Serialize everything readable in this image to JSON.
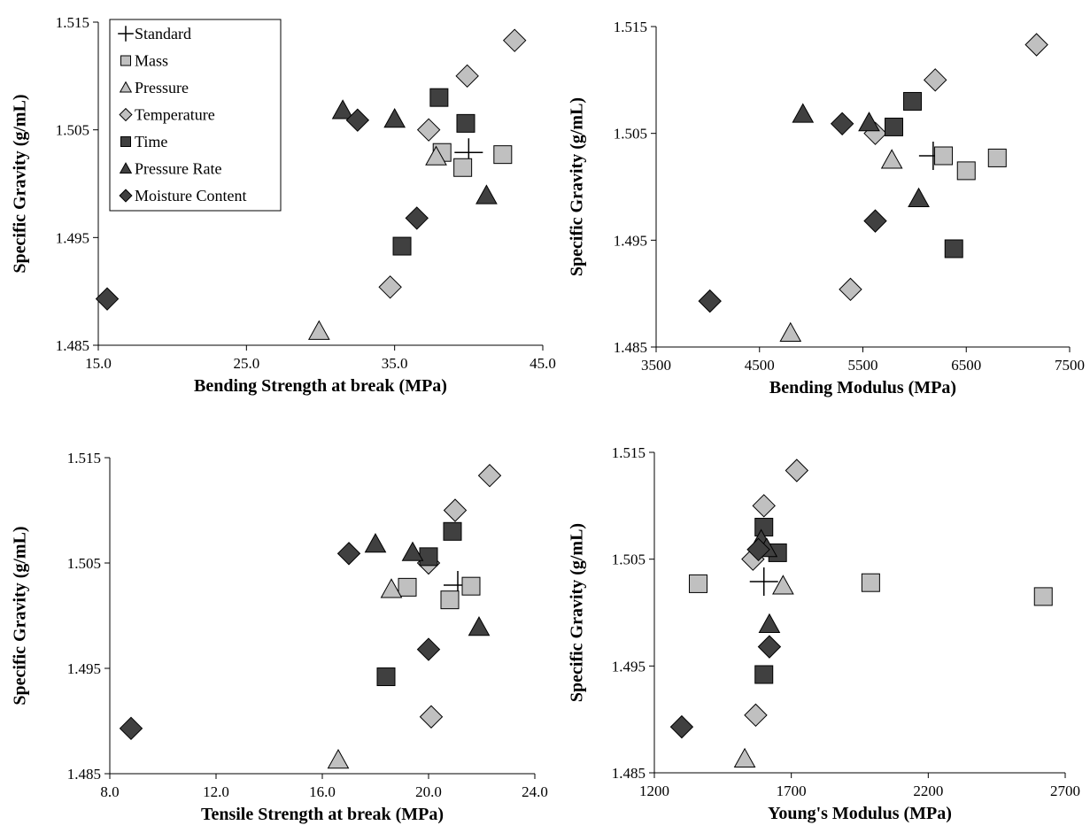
{
  "colors": {
    "light_fill": "#c0c0c0",
    "dark_fill": "#404040",
    "stroke": "#000000"
  },
  "legend": {
    "entries": [
      {
        "label": "Standard",
        "marker": "plus",
        "fill": "none"
      },
      {
        "label": "Mass",
        "marker": "square",
        "fill": "light"
      },
      {
        "label": "Pressure",
        "marker": "triangle",
        "fill": "light"
      },
      {
        "label": "Temperature",
        "marker": "diamond",
        "fill": "light"
      },
      {
        "label": "Time",
        "marker": "square",
        "fill": "dark"
      },
      {
        "label": "Pressure Rate",
        "marker": "triangle",
        "fill": "dark"
      },
      {
        "label": "Moisture Content",
        "marker": "diamond",
        "fill": "dark"
      }
    ],
    "placement": "top-left of first chart"
  },
  "chart_data": [
    {
      "type": "scatter",
      "xlabel": "Bending Strength at break (MPa)",
      "ylabel": "Specific Gravity (g/mL)",
      "xlim": [
        15,
        45
      ],
      "ylim": [
        1.485,
        1.515
      ],
      "xticks": [
        "15.0",
        "25.0",
        "35.0",
        "45.0"
      ],
      "yticks": [
        "1.485",
        "1.495",
        "1.505",
        "1.515"
      ],
      "grid": false,
      "legend": true,
      "series": [
        {
          "name": "Standard",
          "marker": "plus",
          "fill": "none",
          "points": [
            [
              40.0,
              1.5029
            ]
          ]
        },
        {
          "name": "Mass",
          "marker": "square",
          "fill": "light",
          "points": [
            [
              38.2,
              1.5029
            ],
            [
              39.6,
              1.5015
            ],
            [
              42.3,
              1.5027
            ]
          ]
        },
        {
          "name": "Pressure",
          "marker": "triangle",
          "fill": "light",
          "points": [
            [
              37.8,
              1.5025
            ],
            [
              29.9,
              1.4863
            ]
          ]
        },
        {
          "name": "Temperature",
          "marker": "diamond",
          "fill": "light",
          "points": [
            [
              43.1,
              1.5133
            ],
            [
              39.9,
              1.51
            ],
            [
              37.3,
              1.505
            ],
            [
              34.7,
              1.4904
            ]
          ]
        },
        {
          "name": "Time",
          "marker": "square",
          "fill": "dark",
          "points": [
            [
              38.0,
              1.508
            ],
            [
              39.8,
              1.5056
            ],
            [
              35.5,
              1.4942
            ]
          ]
        },
        {
          "name": "Pressure Rate",
          "marker": "triangle",
          "fill": "dark",
          "points": [
            [
              31.5,
              1.5068
            ],
            [
              35.0,
              1.506
            ],
            [
              41.2,
              1.4989
            ]
          ]
        },
        {
          "name": "Moisture Content",
          "marker": "diamond",
          "fill": "dark",
          "points": [
            [
              32.5,
              1.5059
            ],
            [
              36.5,
              1.4968
            ],
            [
              15.6,
              1.4893
            ]
          ]
        }
      ]
    },
    {
      "type": "scatter",
      "xlabel": "Bending Modulus (MPa)",
      "ylabel": "Specific Gravity (g/mL)",
      "xlim": [
        3500,
        7500
      ],
      "ylim": [
        1.485,
        1.515
      ],
      "xticks": [
        "3500",
        "4500",
        "5500",
        "6500",
        "7500"
      ],
      "yticks": [
        "1.485",
        "1.495",
        "1.505",
        "1.515"
      ],
      "grid": false,
      "legend": false,
      "series": [
        {
          "name": "Standard",
          "marker": "plus",
          "fill": "none",
          "points": [
            [
              6180,
              1.5029
            ]
          ]
        },
        {
          "name": "Mass",
          "marker": "square",
          "fill": "light",
          "points": [
            [
              6280,
              1.5029
            ],
            [
              6500,
              1.5015
            ],
            [
              6800,
              1.5027
            ]
          ]
        },
        {
          "name": "Pressure",
          "marker": "triangle",
          "fill": "light",
          "points": [
            [
              5780,
              1.5025
            ],
            [
              4800,
              1.4863
            ]
          ]
        },
        {
          "name": "Temperature",
          "marker": "diamond",
          "fill": "light",
          "points": [
            [
              7180,
              1.5133
            ],
            [
              6200,
              1.51
            ],
            [
              5620,
              1.505
            ],
            [
              5380,
              1.4904
            ]
          ]
        },
        {
          "name": "Time",
          "marker": "square",
          "fill": "dark",
          "points": [
            [
              5980,
              1.508
            ],
            [
              5800,
              1.5056
            ],
            [
              6380,
              1.4942
            ]
          ]
        },
        {
          "name": "Pressure Rate",
          "marker": "triangle",
          "fill": "dark",
          "points": [
            [
              4920,
              1.5068
            ],
            [
              5560,
              1.506
            ],
            [
              6040,
              1.4989
            ]
          ]
        },
        {
          "name": "Moisture Content",
          "marker": "diamond",
          "fill": "dark",
          "points": [
            [
              5300,
              1.5059
            ],
            [
              5620,
              1.4968
            ],
            [
              4020,
              1.4893
            ]
          ]
        }
      ]
    },
    {
      "type": "scatter",
      "xlabel": "Tensile Strength at break (MPa)",
      "ylabel": "Specific Gravity (g/mL)",
      "xlim": [
        8,
        24
      ],
      "ylim": [
        1.485,
        1.515
      ],
      "xticks": [
        "8.0",
        "12.0",
        "16.0",
        "20.0",
        "24.0"
      ],
      "yticks": [
        "1.485",
        "1.495",
        "1.505",
        "1.515"
      ],
      "grid": false,
      "legend": false,
      "series": [
        {
          "name": "Standard",
          "marker": "plus",
          "fill": "none",
          "points": [
            [
              21.1,
              1.5029
            ]
          ]
        },
        {
          "name": "Mass",
          "marker": "square",
          "fill": "light",
          "points": [
            [
              19.2,
              1.5027
            ],
            [
              20.8,
              1.5015
            ],
            [
              21.6,
              1.5028
            ]
          ]
        },
        {
          "name": "Pressure",
          "marker": "triangle",
          "fill": "light",
          "points": [
            [
              18.6,
              1.5025
            ],
            [
              16.6,
              1.4863
            ]
          ]
        },
        {
          "name": "Temperature",
          "marker": "diamond",
          "fill": "light",
          "points": [
            [
              22.3,
              1.5133
            ],
            [
              21.0,
              1.51
            ],
            [
              20.0,
              1.505
            ],
            [
              20.1,
              1.4904
            ]
          ]
        },
        {
          "name": "Time",
          "marker": "square",
          "fill": "dark",
          "points": [
            [
              20.9,
              1.508
            ],
            [
              20.0,
              1.5056
            ],
            [
              18.4,
              1.4942
            ]
          ]
        },
        {
          "name": "Pressure Rate",
          "marker": "triangle",
          "fill": "dark",
          "points": [
            [
              18.0,
              1.5068
            ],
            [
              19.4,
              1.506
            ],
            [
              21.9,
              1.4989
            ]
          ]
        },
        {
          "name": "Moisture Content",
          "marker": "diamond",
          "fill": "dark",
          "points": [
            [
              17.0,
              1.5059
            ],
            [
              20.0,
              1.4968
            ],
            [
              8.8,
              1.4893
            ]
          ]
        }
      ]
    },
    {
      "type": "scatter",
      "xlabel": "Young's Modulus (MPa)",
      "ylabel": "Specific Gravity (g/mL)",
      "xlim": [
        1200,
        2700
      ],
      "ylim": [
        1.485,
        1.515
      ],
      "xticks": [
        "1200",
        "1700",
        "2200",
        "2700"
      ],
      "yticks": [
        "1.485",
        "1.495",
        "1.505",
        "1.515"
      ],
      "grid": false,
      "legend": false,
      "series": [
        {
          "name": "Standard",
          "marker": "plus",
          "fill": "none",
          "points": [
            [
              1600,
              1.5029
            ]
          ]
        },
        {
          "name": "Mass",
          "marker": "square",
          "fill": "light",
          "points": [
            [
              1360,
              1.5027
            ],
            [
              1990,
              1.5028
            ],
            [
              2620,
              1.5015
            ]
          ]
        },
        {
          "name": "Pressure",
          "marker": "triangle",
          "fill": "light",
          "points": [
            [
              1670,
              1.5025
            ],
            [
              1530,
              1.4863
            ]
          ]
        },
        {
          "name": "Temperature",
          "marker": "diamond",
          "fill": "light",
          "points": [
            [
              1720,
              1.5133
            ],
            [
              1600,
              1.51
            ],
            [
              1560,
              1.505
            ],
            [
              1570,
              1.4904
            ]
          ]
        },
        {
          "name": "Time",
          "marker": "square",
          "fill": "dark",
          "points": [
            [
              1600,
              1.508
            ],
            [
              1650,
              1.5056
            ],
            [
              1600,
              1.4942
            ]
          ]
        },
        {
          "name": "Pressure Rate",
          "marker": "triangle",
          "fill": "dark",
          "points": [
            [
              1590,
              1.5068
            ],
            [
              1610,
              1.506
            ],
            [
              1620,
              1.4989
            ]
          ]
        },
        {
          "name": "Moisture Content",
          "marker": "diamond",
          "fill": "dark",
          "points": [
            [
              1580,
              1.5059
            ],
            [
              1620,
              1.4968
            ],
            [
              1300,
              1.4893
            ]
          ]
        }
      ]
    }
  ]
}
